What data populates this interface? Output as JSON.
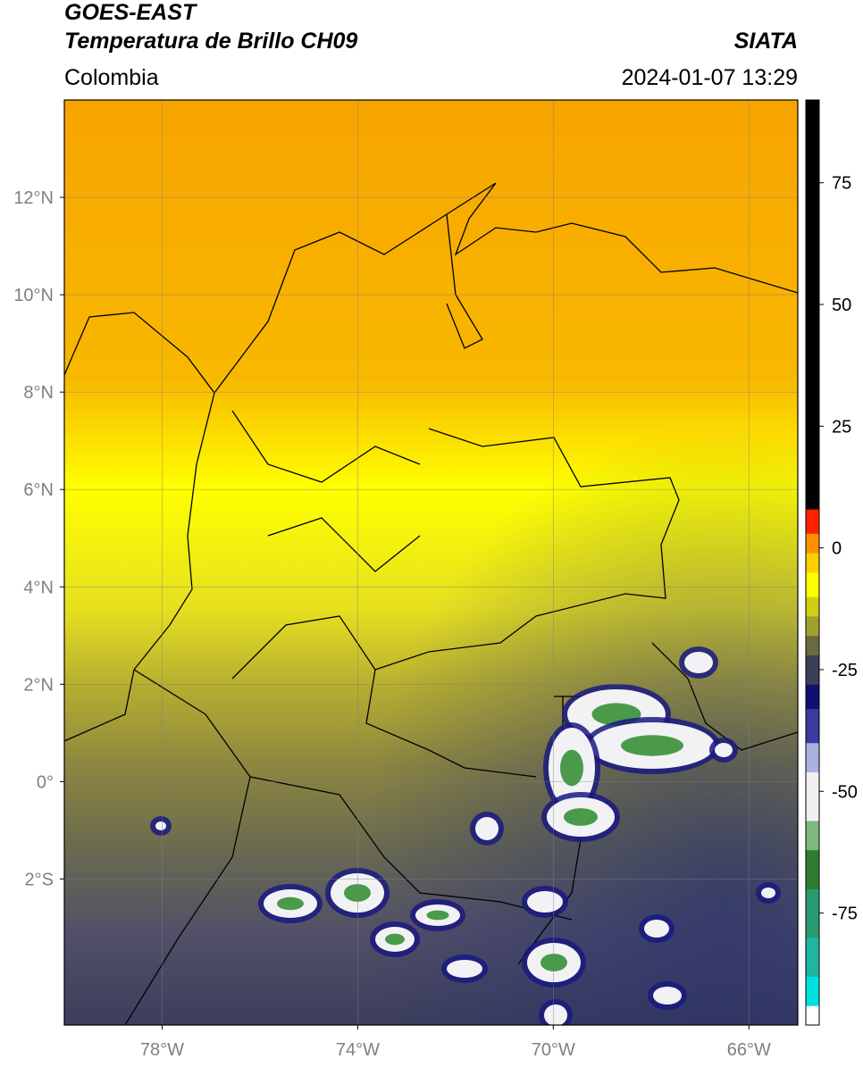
{
  "chart_data": {
    "type": "map",
    "title": "GOES-EAST",
    "subtitle": "Temperatura de Brillo CH09",
    "source": "SIATA",
    "region": "Colombia",
    "datetime": "2024-01-07 13:29",
    "xlim": [
      -80,
      -65
    ],
    "ylim": [
      -5,
      14
    ],
    "xticks": [
      {
        "value": -78,
        "label": "78°W"
      },
      {
        "value": -74,
        "label": "74°W"
      },
      {
        "value": -70,
        "label": "70°W"
      },
      {
        "value": -66,
        "label": "66°W"
      }
    ],
    "yticks": [
      {
        "value": -2,
        "label": "2°S"
      },
      {
        "value": 0,
        "label": "0°"
      },
      {
        "value": 2,
        "label": "2°N"
      },
      {
        "value": 4,
        "label": "4°N"
      },
      {
        "value": 6,
        "label": "6°N"
      },
      {
        "value": 8,
        "label": "8°N"
      },
      {
        "value": 10,
        "label": "10°N"
      },
      {
        "value": 12,
        "label": "12°N"
      }
    ],
    "grid": true,
    "colorbar": {
      "lim": [
        -98,
        92
      ],
      "ticks": [
        -75,
        -50,
        -25,
        0,
        25,
        50,
        75
      ],
      "stops": [
        {
          "value": -98,
          "color": "#ffffff"
        },
        {
          "value": -94,
          "color": "#00e0e0"
        },
        {
          "value": -88,
          "color": "#1fb5a0"
        },
        {
          "value": -80,
          "color": "#2a9a70"
        },
        {
          "value": -70,
          "color": "#2e7d2e"
        },
        {
          "value": -62,
          "color": "#7fb87f"
        },
        {
          "value": -56,
          "color": "#f0f0f0"
        },
        {
          "value": -46,
          "color": "#aab0e0"
        },
        {
          "value": -40,
          "color": "#3a3aa0"
        },
        {
          "value": -33,
          "color": "#101070"
        },
        {
          "value": -28,
          "color": "#3a3f55"
        },
        {
          "value": -22,
          "color": "#6a6a40"
        },
        {
          "value": -18,
          "color": "#a0a030"
        },
        {
          "value": -14,
          "color": "#d0d010"
        },
        {
          "value": -10,
          "color": "#ffff00"
        },
        {
          "value": -5,
          "color": "#ffd000"
        },
        {
          "value": -1,
          "color": "#ff9000"
        },
        {
          "value": 3,
          "color": "#ff2000"
        },
        {
          "value": 8,
          "color": "#000000"
        }
      ]
    }
  }
}
